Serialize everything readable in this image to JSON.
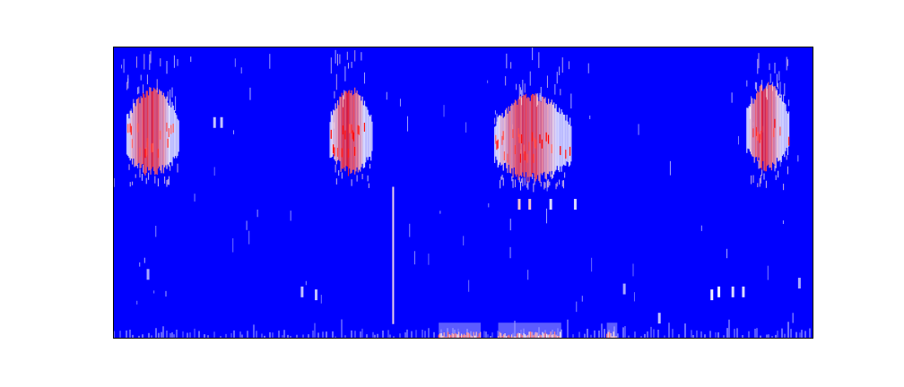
{
  "chart_data": {
    "type": "heatmap",
    "title": "",
    "xlabel": "",
    "ylabel": "",
    "axis_ticks_shown": false,
    "colormap": {
      "low": "#0000ff",
      "mid": "#ffffff",
      "high": "#ff0000"
    },
    "time_range": [
      0,
      1
    ],
    "freq_range": [
      0,
      1
    ],
    "calls": [
      {
        "name": "call-1",
        "t_start": 0.02,
        "t_end": 0.095,
        "f_low": 0.53,
        "f_high": 1.0,
        "f_peak": 0.68,
        "peak_intensity": 0.95
      },
      {
        "name": "call-2",
        "t_start": 0.31,
        "t_end": 0.37,
        "f_low": 0.53,
        "f_high": 1.0,
        "f_peak": 0.68,
        "peak_intensity": 0.95
      },
      {
        "name": "call-3",
        "t_start": 0.545,
        "t_end": 0.655,
        "f_low": 0.53,
        "f_high": 1.0,
        "f_peak": 0.66,
        "peak_intensity": 0.92
      },
      {
        "name": "call-4",
        "t_start": 0.905,
        "t_end": 0.965,
        "f_low": 0.53,
        "f_high": 1.0,
        "f_peak": 0.7,
        "peak_intensity": 0.95
      }
    ],
    "low_band_segments": [
      {
        "t_start": 0.465,
        "t_end": 0.525,
        "f_low": 0.0,
        "f_high": 0.03,
        "peak_intensity": 0.85
      },
      {
        "t_start": 0.55,
        "t_end": 0.64,
        "f_low": 0.0,
        "f_high": 0.03,
        "peak_intensity": 0.8
      },
      {
        "t_start": 0.705,
        "t_end": 0.72,
        "f_low": 0.0,
        "f_high": 0.03,
        "peak_intensity": 0.8
      }
    ],
    "vertical_streaks": [
      {
        "t": 0.4,
        "f_low": 0.05,
        "f_high": 0.52,
        "intensity": 0.55
      }
    ],
    "blips": [
      {
        "t": 0.58,
        "f": 0.46,
        "intensity": 0.6
      },
      {
        "t": 0.595,
        "f": 0.46,
        "intensity": 0.6
      },
      {
        "t": 0.625,
        "f": 0.46,
        "intensity": 0.45
      },
      {
        "t": 0.66,
        "f": 0.46,
        "intensity": 0.45
      },
      {
        "t": 0.855,
        "f": 0.15,
        "intensity": 0.5
      },
      {
        "t": 0.865,
        "f": 0.16,
        "intensity": 0.5
      },
      {
        "t": 0.885,
        "f": 0.16,
        "intensity": 0.45
      },
      {
        "t": 0.9,
        "f": 0.16,
        "intensity": 0.45
      },
      {
        "t": 0.145,
        "f": 0.74,
        "intensity": 0.4
      },
      {
        "t": 0.155,
        "f": 0.74,
        "intensity": 0.4
      },
      {
        "t": 0.27,
        "f": 0.16,
        "intensity": 0.4
      },
      {
        "t": 0.29,
        "f": 0.15,
        "intensity": 0.4
      },
      {
        "t": 0.05,
        "f": 0.22,
        "intensity": 0.35
      },
      {
        "t": 0.78,
        "f": 0.07,
        "intensity": 0.4
      },
      {
        "t": 0.73,
        "f": 0.17,
        "intensity": 0.35
      },
      {
        "t": 0.98,
        "f": 0.19,
        "intensity": 0.35
      }
    ]
  }
}
